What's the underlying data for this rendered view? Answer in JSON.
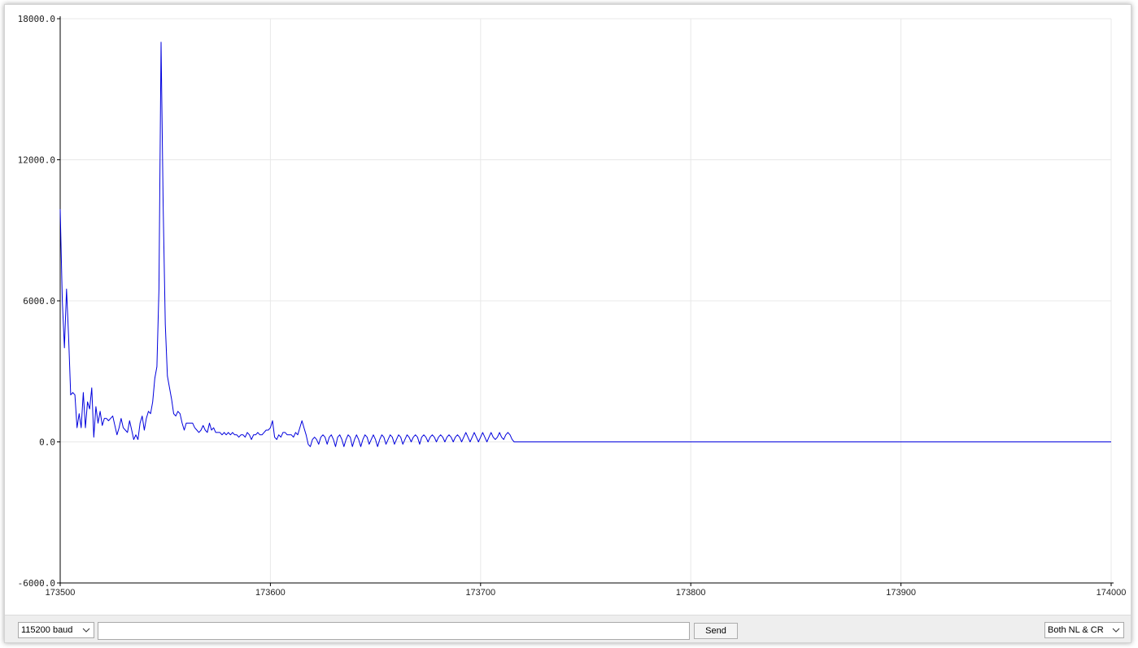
{
  "chart_data": {
    "type": "line",
    "title": "",
    "xlabel": "",
    "ylabel": "",
    "xlim": [
      173500,
      174000
    ],
    "ylim": [
      -6000,
      18000
    ],
    "x_ticks": [
      "173500",
      "173600",
      "173700",
      "173800",
      "173900",
      "174000"
    ],
    "y_ticks": [
      "18000.0",
      "12000.0",
      "6000.0",
      "0.0",
      "-6000.0"
    ],
    "grid": true,
    "series": [
      {
        "color": "#0000dd",
        "x_start": 173500,
        "x_step": 1,
        "values": [
          9900,
          6000,
          4000,
          6500,
          4500,
          2000,
          2100,
          2000,
          600,
          1200,
          600,
          2100,
          600,
          1700,
          1400,
          2300,
          200,
          1500,
          800,
          1300,
          700,
          1000,
          1000,
          900,
          1000,
          1100,
          700,
          300,
          600,
          1000,
          600,
          500,
          400,
          900,
          500,
          100,
          300,
          100,
          800,
          1100,
          500,
          1000,
          1300,
          1200,
          1700,
          2700,
          3200,
          6500,
          17000,
          10000,
          5000,
          2800,
          2300,
          1800,
          1200,
          1100,
          1300,
          1200,
          800,
          500,
          800,
          800,
          800,
          800,
          600,
          500,
          400,
          500,
          700,
          500,
          400,
          800,
          500,
          600,
          400,
          400,
          400,
          300,
          400,
          300,
          400,
          300,
          400,
          300,
          300,
          200,
          300,
          300,
          200,
          400,
          300,
          100,
          300,
          300,
          400,
          300,
          300,
          400,
          500,
          500,
          600,
          900,
          200,
          100,
          300,
          200,
          400,
          400,
          300,
          300,
          300,
          200,
          400,
          300,
          600,
          900,
          600,
          300,
          -100,
          -200,
          100,
          200,
          100,
          -100,
          200,
          300,
          200,
          -100,
          200,
          300,
          100,
          -200,
          200,
          300,
          100,
          -200,
          100,
          300,
          200,
          -200,
          100,
          300,
          100,
          -200,
          100,
          300,
          200,
          -100,
          100,
          300,
          100,
          -200,
          100,
          300,
          200,
          -100,
          100,
          300,
          200,
          -100,
          100,
          300,
          200,
          -100,
          100,
          300,
          200,
          0,
          200,
          300,
          200,
          -100,
          200,
          300,
          200,
          0,
          200,
          300,
          200,
          0,
          200,
          300,
          200,
          0,
          200,
          300,
          200,
          0,
          200,
          300,
          200,
          0,
          200,
          400,
          200,
          0,
          200,
          400,
          200,
          0,
          200,
          400,
          200,
          0,
          200,
          400,
          200,
          100,
          200,
          400,
          200,
          100,
          300,
          400,
          300,
          100,
          0,
          0,
          0
        ]
      }
    ]
  },
  "bottom_bar": {
    "baud_rate": "115200 baud",
    "message_value": "",
    "send_label": "Send",
    "line_ending": "Both NL & CR"
  }
}
